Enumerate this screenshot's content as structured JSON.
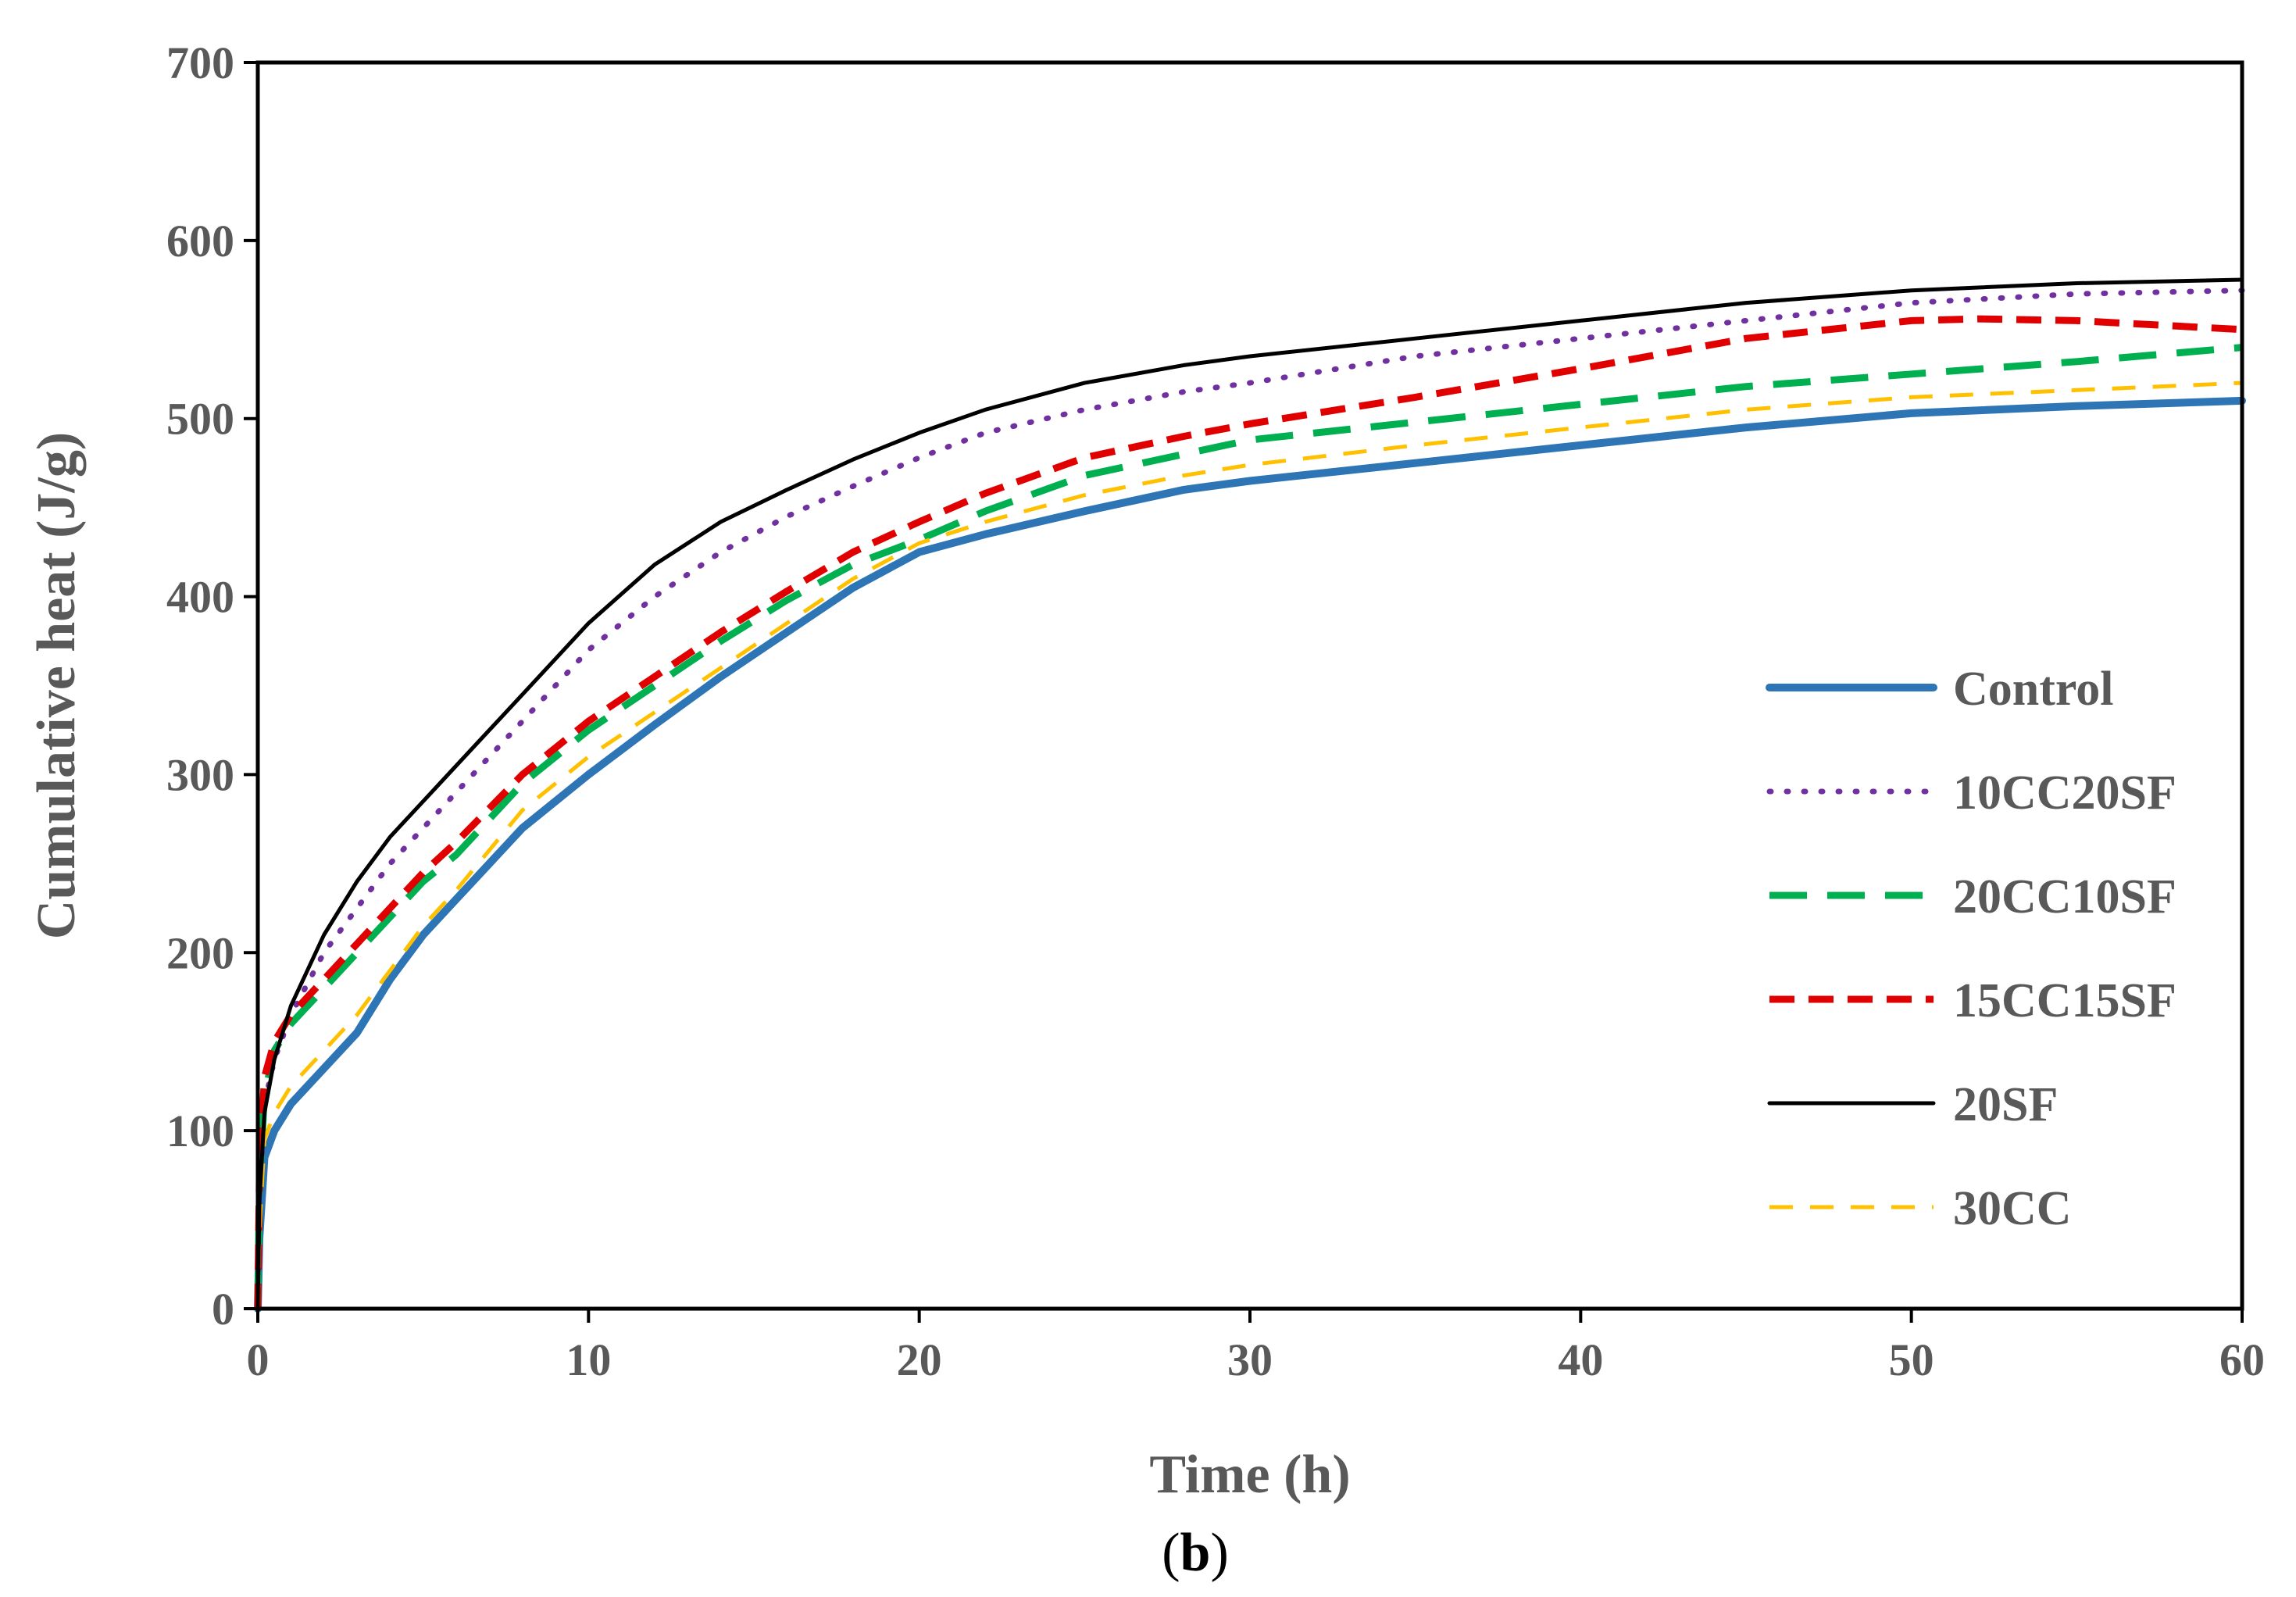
{
  "caption": {
    "open": "(",
    "letter": "b",
    "close": ")"
  },
  "chart_data": {
    "type": "line",
    "title": "",
    "xlabel": "Time (h)",
    "ylabel": "Cumulative heat (J/g)",
    "xlim": [
      0,
      60
    ],
    "ylim": [
      0,
      700
    ],
    "xticks": [
      0,
      10,
      20,
      30,
      40,
      50,
      60
    ],
    "yticks": [
      0,
      100,
      200,
      300,
      400,
      500,
      600,
      700
    ],
    "grid": false,
    "legend_position": "right",
    "series": [
      {
        "name": "Control",
        "color": "#2E75B6",
        "style": "solid-thick",
        "x": [
          0,
          0.05,
          0.2,
          0.5,
          1,
          2,
          3,
          4,
          5,
          6,
          8,
          10,
          12,
          14,
          16,
          18,
          20,
          22,
          25,
          28,
          30,
          35,
          40,
          45,
          50,
          55,
          60
        ],
        "y": [
          0,
          40,
          85,
          100,
          115,
          135,
          155,
          185,
          210,
          230,
          270,
          300,
          328,
          355,
          380,
          405,
          425,
          435,
          448,
          460,
          465,
          475,
          485,
          495,
          503,
          507,
          510
        ]
      },
      {
        "name": "10CC20SF",
        "color": "#7030A0",
        "style": "dotted",
        "x": [
          0,
          0.05,
          0.2,
          0.5,
          1,
          2,
          3,
          4,
          5,
          6,
          8,
          10,
          12,
          14,
          16,
          18,
          20,
          22,
          25,
          28,
          30,
          35,
          40,
          45,
          50,
          55,
          60
        ],
        "y": [
          0,
          60,
          115,
          140,
          165,
          200,
          225,
          250,
          270,
          290,
          330,
          370,
          400,
          425,
          445,
          462,
          478,
          492,
          505,
          515,
          520,
          535,
          545,
          555,
          565,
          570,
          572
        ]
      },
      {
        "name": "20CC10SF",
        "color": "#00B050",
        "style": "long-dash",
        "x": [
          0,
          0.05,
          0.2,
          0.5,
          1,
          2,
          3,
          4,
          5,
          6,
          8,
          10,
          12,
          14,
          16,
          18,
          20,
          22,
          25,
          28,
          30,
          35,
          40,
          45,
          50,
          55,
          60
        ],
        "y": [
          0,
          70,
          120,
          145,
          160,
          180,
          200,
          220,
          240,
          255,
          295,
          325,
          350,
          375,
          398,
          418,
          432,
          448,
          468,
          480,
          488,
          498,
          508,
          518,
          525,
          532,
          540
        ]
      },
      {
        "name": "15CC15SF",
        "color": "#E00000",
        "style": "dash",
        "x": [
          0,
          0.05,
          0.2,
          0.5,
          1,
          2,
          3,
          4,
          5,
          6,
          8,
          10,
          12,
          14,
          16,
          18,
          20,
          22,
          25,
          28,
          30,
          35,
          40,
          45,
          50,
          52,
          55,
          60
        ],
        "y": [
          0,
          75,
          130,
          150,
          165,
          185,
          205,
          225,
          245,
          262,
          300,
          330,
          355,
          380,
          403,
          425,
          442,
          458,
          478,
          490,
          497,
          512,
          528,
          545,
          555,
          556,
          555,
          550
        ]
      },
      {
        "name": "20SF",
        "color": "#000000",
        "style": "solid-thin",
        "x": [
          0,
          0.05,
          0.2,
          0.5,
          1,
          2,
          3,
          4,
          5,
          6,
          8,
          10,
          12,
          14,
          16,
          18,
          20,
          22,
          25,
          28,
          30,
          35,
          40,
          45,
          50,
          55,
          60
        ],
        "y": [
          0,
          60,
          110,
          140,
          170,
          210,
          240,
          265,
          285,
          305,
          345,
          385,
          418,
          442,
          460,
          477,
          492,
          505,
          520,
          530,
          535,
          545,
          555,
          565,
          572,
          576,
          578
        ]
      },
      {
        "name": "30CC",
        "color": "#FFC000",
        "style": "dash-thin",
        "x": [
          0,
          0.05,
          0.2,
          0.5,
          1,
          2,
          3,
          4,
          5,
          6,
          8,
          10,
          12,
          14,
          16,
          18,
          20,
          22,
          25,
          28,
          30,
          35,
          40,
          45,
          50,
          55,
          60
        ],
        "y": [
          0,
          45,
          95,
          110,
          125,
          145,
          165,
          190,
          215,
          235,
          280,
          310,
          335,
          360,
          385,
          410,
          430,
          442,
          457,
          468,
          474,
          485,
          495,
          505,
          512,
          516,
          520
        ]
      }
    ]
  }
}
